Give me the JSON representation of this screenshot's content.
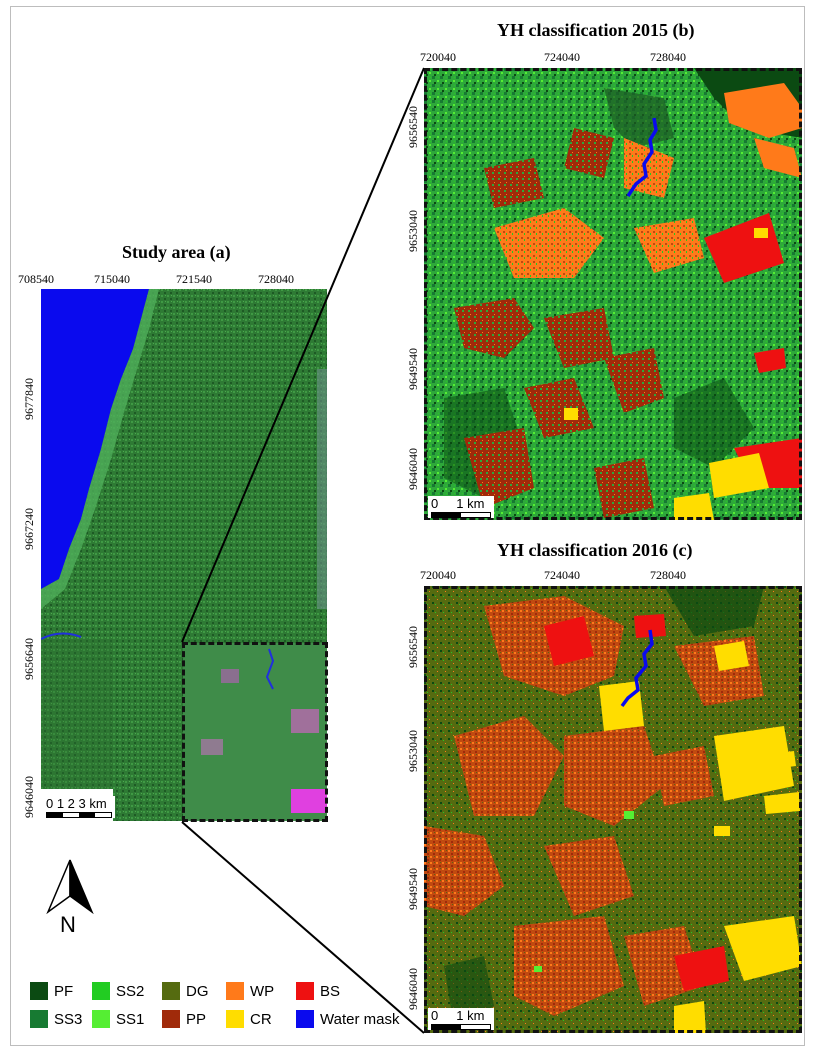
{
  "figure": {
    "panel_a": {
      "title": "Study area (a)",
      "x_ticks": [
        "708540",
        "715040",
        "721540",
        "728040"
      ],
      "y_ticks": [
        "9677840",
        "9667240",
        "9656640",
        "9646040"
      ],
      "scale_label": "0 1 2 3 km"
    },
    "panel_b": {
      "title": "YH classification 2015 (b)",
      "x_ticks": [
        "720040",
        "724040",
        "728040"
      ],
      "y_ticks": [
        "9656540",
        "9653040",
        "9649540",
        "9646040"
      ],
      "scale_label": "0     1 km"
    },
    "panel_c": {
      "title": "YH classification 2016 (c)",
      "x_ticks": [
        "720040",
        "724040",
        "728040"
      ],
      "y_ticks": [
        "9656540",
        "9653040",
        "9649540",
        "9646040"
      ],
      "scale_label": "0     1 km"
    },
    "north_label": "N",
    "legend": [
      {
        "code": "PF",
        "color": "#0b4a12"
      },
      {
        "code": "SS2",
        "color": "#22cc22"
      },
      {
        "code": "DG",
        "color": "#556b10"
      },
      {
        "code": "WP",
        "color": "#ff7a1a"
      },
      {
        "code": "BS",
        "color": "#ee1111"
      },
      {
        "code": "SS3",
        "color": "#177a32"
      },
      {
        "code": "SS1",
        "color": "#55ee33"
      },
      {
        "code": "PP",
        "color": "#a02a0a"
      },
      {
        "code": "CR",
        "color": "#ffdd00"
      },
      {
        "code": "Water mask",
        "color": "#0a0aee"
      }
    ]
  }
}
